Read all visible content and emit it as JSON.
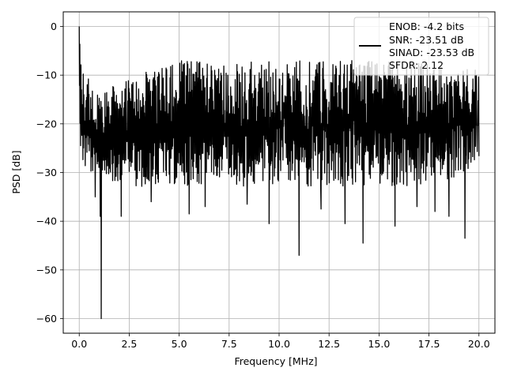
{
  "chart_data": {
    "type": "line",
    "xlabel": "Frequency [MHz]",
    "ylabel": "PSD [dB]",
    "xlim": [
      -0.8,
      20.8
    ],
    "ylim": [
      -63,
      3
    ],
    "xticks": [
      0.0,
      2.5,
      5.0,
      7.5,
      10.0,
      12.5,
      15.0,
      17.5,
      20.0
    ],
    "xtick_labels": [
      "0.0",
      "2.5",
      "5.0",
      "7.5",
      "10.0",
      "12.5",
      "15.0",
      "17.5",
      "20.0"
    ],
    "yticks": [
      0,
      -10,
      -20,
      -30,
      -40,
      -50,
      -60
    ],
    "ytick_labels": [
      "0",
      "−10",
      "−20",
      "−30",
      "−40",
      "−50",
      "−60"
    ],
    "grid": true,
    "legend_position": "top-right",
    "legend_entries": [
      "ENOB: -4.2 bits",
      "SNR: -23.51 dB",
      "SINAD: -23.53 dB",
      "SFDR: 2.12"
    ],
    "series": [
      {
        "color": "#000000",
        "x_range": [
          0,
          20
        ],
        "n_points": 1400,
        "envelope": {
          "x": [
            0,
            0.05,
            0.2,
            0.5,
            1.0,
            2.0,
            3.0,
            4.0,
            5.0,
            6.0,
            6.5,
            7.0,
            8.0,
            10.0,
            12.0,
            14.0,
            16.0,
            18.0,
            20.0
          ],
          "top": [
            0,
            -6,
            -9,
            -11,
            -13,
            -12,
            -10,
            -8,
            -7,
            -7,
            -7,
            -8,
            -7,
            -7,
            -7,
            -7,
            -7,
            -8,
            -9
          ],
          "bottom": [
            -24,
            -25,
            -28,
            -30,
            -31,
            -32,
            -33,
            -33,
            -33,
            -33,
            -30,
            -31,
            -33,
            -33,
            -33,
            -33,
            -33,
            -32,
            -30
          ]
        },
        "dips": [
          {
            "x": 1.1,
            "y": -60.0
          },
          {
            "x": 1.05,
            "y": -39.0
          },
          {
            "x": 2.1,
            "y": -39.0
          },
          {
            "x": 5.5,
            "y": -38.5
          },
          {
            "x": 9.5,
            "y": -40.5
          },
          {
            "x": 11.0,
            "y": -47.0
          },
          {
            "x": 13.3,
            "y": -40.5
          },
          {
            "x": 14.2,
            "y": -44.5
          },
          {
            "x": 15.8,
            "y": -41.0
          },
          {
            "x": 18.5,
            "y": -39.0
          },
          {
            "x": 19.3,
            "y": -43.5
          },
          {
            "x": 0.8,
            "y": -35.0
          },
          {
            "x": 3.6,
            "y": -36.0
          },
          {
            "x": 6.3,
            "y": -37.0
          },
          {
            "x": 8.4,
            "y": -36.5
          },
          {
            "x": 12.1,
            "y": -37.5
          },
          {
            "x": 16.9,
            "y": -37.0
          },
          {
            "x": 17.8,
            "y": -38.0
          }
        ]
      }
    ]
  }
}
